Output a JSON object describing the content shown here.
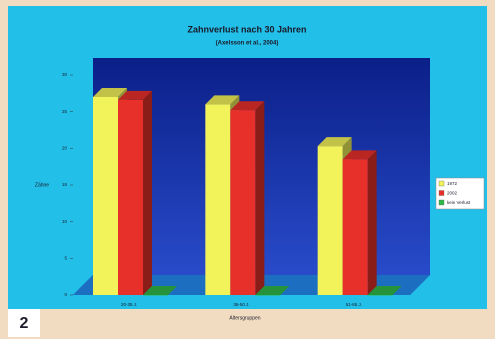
{
  "figure_label": "2",
  "chart_data": {
    "type": "bar3d",
    "title": "Zahnverlust nach 30 Jahren",
    "subtitle": "(Axelsson et al., 2004)",
    "y_label": "Zähne",
    "x_label": "Altersgruppen",
    "categories": [
      "20-35 J.",
      "36-50 J.",
      "51-65 J."
    ],
    "series": [
      {
        "name": "1972",
        "color": "#f2f25a",
        "values": [
          27,
          26,
          20.3
        ]
      },
      {
        "name": "2002",
        "color": "#e8302a",
        "values": [
          26.6,
          25.2,
          18.5
        ]
      },
      {
        "name": "kein Verlust",
        "color": "#2fb84a",
        "values": [
          0,
          0,
          0
        ]
      }
    ],
    "ylim": [
      0,
      30
    ],
    "yticks": [
      0,
      5,
      10,
      15,
      20,
      25,
      30
    ]
  }
}
